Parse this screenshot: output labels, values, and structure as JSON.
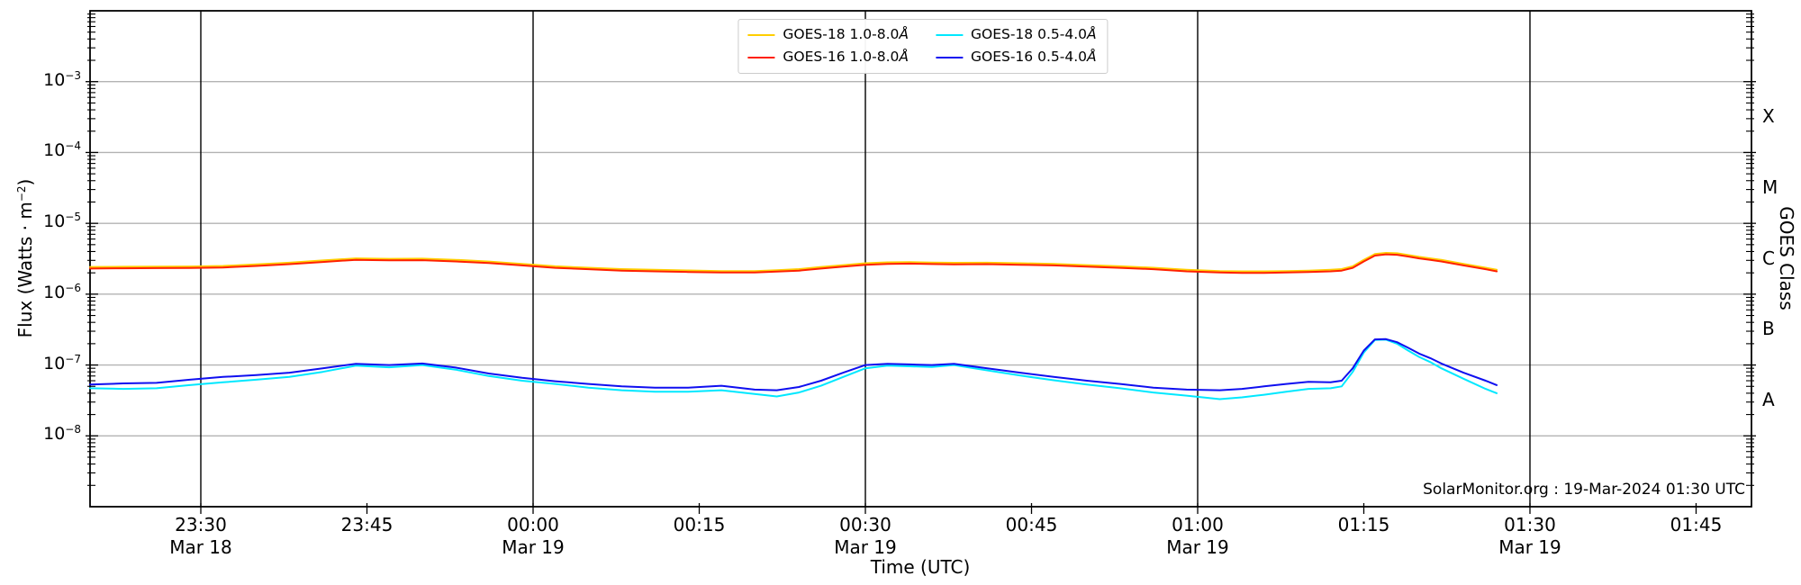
{
  "chart_data": {
    "type": "line",
    "title": "",
    "xlabel": "Time (UTC)",
    "ylabel_pre": "Flux (Watts · m",
    "ylabel_sup": "−2",
    "ylabel_post": ")",
    "ylabel_right": "GOES Class",
    "annotation": "SolarMonitor.org : 19-Mar-2024 01:30 UTC",
    "x_range": {
      "start": "23:20",
      "end": "01:50"
    },
    "y_range": {
      "min": 1e-09,
      "max": 0.01
    },
    "grid": {
      "horizontal": true,
      "vertical_on_dated_ticks": true
    },
    "legend_position": "upper center",
    "legend_columns": 2,
    "colors": {
      "grid_h": "#b3b3b3",
      "grid_v": "#000000",
      "spine": "#000000"
    },
    "y_ticks_exp": [
      -3,
      -4,
      -5,
      -6,
      -7,
      -8
    ],
    "class_bands": [
      {
        "label": "X",
        "exp": -3.5
      },
      {
        "label": "M",
        "exp": -4.5
      },
      {
        "label": "C",
        "exp": -5.5
      },
      {
        "label": "B",
        "exp": -6.5
      },
      {
        "label": "A",
        "exp": -7.5
      }
    ],
    "x_ticks": [
      {
        "label": "23:30",
        "date": "Mar 18"
      },
      {
        "label": "23:45",
        "date": ""
      },
      {
        "label": "00:00",
        "date": "Mar 19"
      },
      {
        "label": "00:15",
        "date": ""
      },
      {
        "label": "00:30",
        "date": "Mar 19"
      },
      {
        "label": "00:45",
        "date": ""
      },
      {
        "label": "01:00",
        "date": "Mar 19"
      },
      {
        "label": "01:15",
        "date": ""
      },
      {
        "label": "01:30",
        "date": "Mar 19"
      },
      {
        "label": "01:45",
        "date": ""
      }
    ],
    "x_times": [
      "23:20",
      "23:23",
      "23:26",
      "23:29",
      "23:32",
      "23:35",
      "23:38",
      "23:41",
      "23:44",
      "23:47",
      "23:50",
      "23:53",
      "23:56",
      "23:59",
      "00:02",
      "00:05",
      "00:08",
      "00:11",
      "00:14",
      "00:17",
      "00:20",
      "00:22",
      "00:24",
      "00:26",
      "00:28",
      "00:30",
      "00:32",
      "00:34",
      "00:36",
      "00:38",
      "00:41",
      "00:44",
      "00:47",
      "00:50",
      "00:53",
      "00:56",
      "00:59",
      "01:02",
      "01:04",
      "01:06",
      "01:08",
      "01:10",
      "01:12",
      "01:13",
      "01:14",
      "01:15",
      "01:16",
      "01:17",
      "01:18",
      "01:19",
      "01:20",
      "01:21",
      "01:22",
      "01:24",
      "01:26",
      "01:27"
    ],
    "series": [
      {
        "name": "GOES-18 1.0-8.0Å",
        "color": "#ffce00",
        "values": [
          2.42e-06,
          2.44e-06,
          2.45e-06,
          2.46e-06,
          2.5e-06,
          2.63e-06,
          2.78e-06,
          2.99e-06,
          3.2e-06,
          3.15e-06,
          3.17e-06,
          3.05e-06,
          2.89e-06,
          2.68e-06,
          2.47e-06,
          2.36e-06,
          2.26e-06,
          2.21e-06,
          2.16e-06,
          2.12e-06,
          2.12e-06,
          2.18e-06,
          2.26e-06,
          2.42e-06,
          2.57e-06,
          2.73e-06,
          2.81e-06,
          2.84e-06,
          2.79e-06,
          2.77e-06,
          2.78e-06,
          2.73e-06,
          2.68e-06,
          2.57e-06,
          2.47e-06,
          2.36e-06,
          2.21e-06,
          2.12e-06,
          2.1e-06,
          2.1e-06,
          2.12e-06,
          2.15e-06,
          2.21e-06,
          2.26e-06,
          2.47e-06,
          3.05e-06,
          3.68e-06,
          3.83e-06,
          3.78e-06,
          3.57e-06,
          3.36e-06,
          3.2e-06,
          3.05e-06,
          2.68e-06,
          2.36e-06,
          2.21e-06
        ]
      },
      {
        "name": "GOES-16 1.0-8.0Å",
        "color": "#ff2000",
        "values": [
          2.3e-06,
          2.32e-06,
          2.33e-06,
          2.34e-06,
          2.38e-06,
          2.5e-06,
          2.65e-06,
          2.85e-06,
          3.05e-06,
          3e-06,
          3.02e-06,
          2.9e-06,
          2.75e-06,
          2.55e-06,
          2.35e-06,
          2.25e-06,
          2.15e-06,
          2.1e-06,
          2.06e-06,
          2.02e-06,
          2.02e-06,
          2.08e-06,
          2.15e-06,
          2.3e-06,
          2.45e-06,
          2.6e-06,
          2.68e-06,
          2.7e-06,
          2.66e-06,
          2.64e-06,
          2.65e-06,
          2.6e-06,
          2.55e-06,
          2.45e-06,
          2.35e-06,
          2.25e-06,
          2.1e-06,
          2.02e-06,
          2e-06,
          2e-06,
          2.02e-06,
          2.05e-06,
          2.1e-06,
          2.15e-06,
          2.35e-06,
          2.9e-06,
          3.5e-06,
          3.65e-06,
          3.6e-06,
          3.4e-06,
          3.2e-06,
          3.05e-06,
          2.9e-06,
          2.55e-06,
          2.25e-06,
          2.1e-06
        ]
      },
      {
        "name": "GOES-18 0.5-4.0Å",
        "color": "#00e8ff",
        "values": [
          4.7e-08,
          4.6e-08,
          4.7e-08,
          5.2e-08,
          5.7e-08,
          6.2e-08,
          6.8e-08,
          8e-08,
          9.8e-08,
          9.3e-08,
          1e-07,
          8.6e-08,
          7e-08,
          6e-08,
          5.4e-08,
          4.8e-08,
          4.4e-08,
          4.2e-08,
          4.2e-08,
          4.4e-08,
          3.9e-08,
          3.6e-08,
          4.1e-08,
          5.1e-08,
          6.8e-08,
          9e-08,
          9.8e-08,
          9.6e-08,
          9.4e-08,
          1e-07,
          8.4e-08,
          7.1e-08,
          6.1e-08,
          5.3e-08,
          4.7e-08,
          4.1e-08,
          3.7e-08,
          3.3e-08,
          3.5e-08,
          3.8e-08,
          4.2e-08,
          4.6e-08,
          4.7e-08,
          5e-08,
          8e-08,
          1.5e-07,
          2.25e-07,
          2.28e-07,
          2e-07,
          1.6e-07,
          1.3e-07,
          1.1e-07,
          9e-08,
          6.4e-08,
          4.6e-08,
          4e-08
        ]
      },
      {
        "name": "GOES-16 0.5-4.0Å",
        "color": "#0f0ff0",
        "values": [
          5.3e-08,
          5.5e-08,
          5.6e-08,
          6.2e-08,
          6.8e-08,
          7.2e-08,
          7.8e-08,
          9e-08,
          1.04e-07,
          1e-07,
          1.05e-07,
          9.2e-08,
          7.6e-08,
          6.6e-08,
          5.9e-08,
          5.4e-08,
          5e-08,
          4.8e-08,
          4.8e-08,
          5.1e-08,
          4.5e-08,
          4.4e-08,
          4.9e-08,
          6e-08,
          7.8e-08,
          1e-07,
          1.04e-07,
          1.02e-07,
          1e-07,
          1.04e-07,
          9e-08,
          7.8e-08,
          6.8e-08,
          6e-08,
          5.4e-08,
          4.8e-08,
          4.5e-08,
          4.4e-08,
          4.6e-08,
          5e-08,
          5.4e-08,
          5.8e-08,
          5.7e-08,
          6e-08,
          9e-08,
          1.6e-07,
          2.3e-07,
          2.32e-07,
          2.1e-07,
          1.75e-07,
          1.45e-07,
          1.25e-07,
          1.05e-07,
          7.8e-08,
          6e-08,
          5.2e-08
        ]
      }
    ]
  }
}
